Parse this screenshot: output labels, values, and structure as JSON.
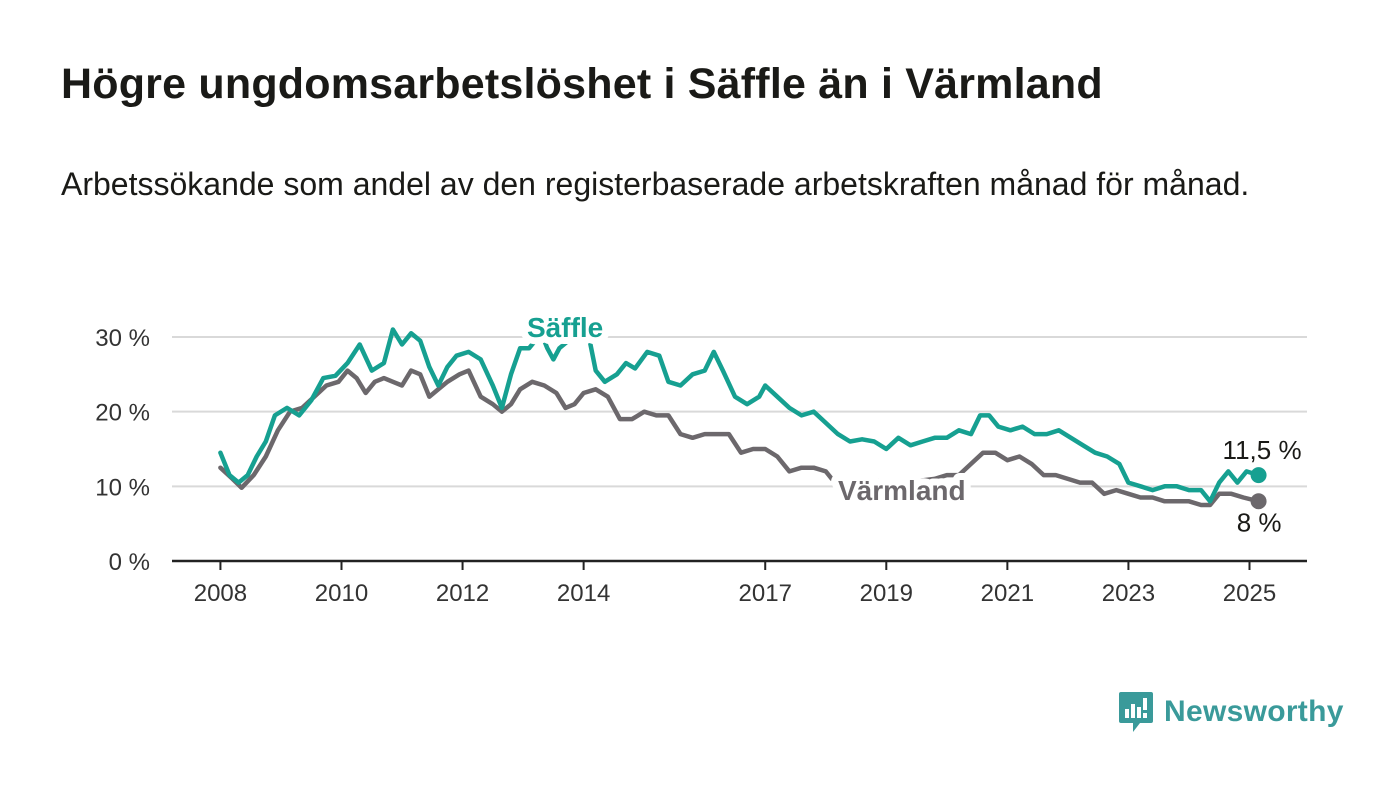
{
  "header": {
    "title": "Högre ungdomsarbetslöshet i Säffle än i Värmland",
    "subtitle": "Arbetssökande som andel av den registerbaserade arbetskraften månad för månad."
  },
  "branding": {
    "logo_text": "Newsworthy",
    "logo_icon": "bar-chart-speech-bubble-icon",
    "color": "#3a9a9a"
  },
  "chart_data": {
    "type": "line",
    "x_tick_labels": [
      "2008",
      "2010",
      "2012",
      "2014",
      "2017",
      "2019",
      "2021",
      "2023",
      "2025"
    ],
    "x_ticks": [
      2008,
      2010,
      2012,
      2014,
      2017,
      2019,
      2021,
      2023,
      2025
    ],
    "xlim": [
      2007.2,
      2025.95
    ],
    "y_tick_labels": [
      "0 %",
      "10 %",
      "20 %",
      "30 %"
    ],
    "y_ticks": [
      0,
      10,
      20,
      30
    ],
    "ylim": [
      0,
      30
    ],
    "grid": true,
    "series": [
      {
        "name": "Säffle",
        "color": "#16a091",
        "end_label": "11,5 %",
        "points": [
          [
            2008.0,
            14.5
          ],
          [
            2008.15,
            11.5
          ],
          [
            2008.3,
            10.5
          ],
          [
            2008.45,
            11.5
          ],
          [
            2008.6,
            14
          ],
          [
            2008.75,
            16
          ],
          [
            2008.9,
            19.5
          ],
          [
            2009.1,
            20.5
          ],
          [
            2009.3,
            19.5
          ],
          [
            2009.5,
            21.5
          ],
          [
            2009.7,
            24.5
          ],
          [
            2009.9,
            24.8
          ],
          [
            2010.1,
            26.5
          ],
          [
            2010.3,
            29
          ],
          [
            2010.5,
            25.5
          ],
          [
            2010.7,
            26.5
          ],
          [
            2010.85,
            31
          ],
          [
            2011.0,
            29
          ],
          [
            2011.15,
            30.5
          ],
          [
            2011.3,
            29.5
          ],
          [
            2011.45,
            26
          ],
          [
            2011.6,
            23.5
          ],
          [
            2011.75,
            26
          ],
          [
            2011.9,
            27.5
          ],
          [
            2012.1,
            28
          ],
          [
            2012.3,
            27
          ],
          [
            2012.5,
            23.5
          ],
          [
            2012.65,
            20.5
          ],
          [
            2012.8,
            25
          ],
          [
            2012.95,
            28.5
          ],
          [
            2013.1,
            28.5
          ],
          [
            2013.3,
            30.5
          ],
          [
            2013.4,
            28.5
          ],
          [
            2013.5,
            27
          ],
          [
            2013.6,
            28.5
          ],
          [
            2013.75,
            29.5
          ],
          [
            2013.9,
            30.5
          ],
          [
            2014.1,
            29.5
          ],
          [
            2014.2,
            25.5
          ],
          [
            2014.35,
            24
          ],
          [
            2014.55,
            25
          ],
          [
            2014.7,
            26.5
          ],
          [
            2014.85,
            25.8
          ],
          [
            2015.05,
            28
          ],
          [
            2015.25,
            27.5
          ],
          [
            2015.4,
            24
          ],
          [
            2015.6,
            23.5
          ],
          [
            2015.8,
            25
          ],
          [
            2016.0,
            25.5
          ],
          [
            2016.15,
            28
          ],
          [
            2016.3,
            25.5
          ],
          [
            2016.5,
            22
          ],
          [
            2016.7,
            21
          ],
          [
            2016.9,
            22
          ],
          [
            2017.0,
            23.5
          ],
          [
            2017.2,
            22
          ],
          [
            2017.4,
            20.5
          ],
          [
            2017.6,
            19.5
          ],
          [
            2017.8,
            20
          ],
          [
            2018.0,
            18.5
          ],
          [
            2018.2,
            17
          ],
          [
            2018.4,
            16
          ],
          [
            2018.6,
            16.3
          ],
          [
            2018.8,
            16
          ],
          [
            2019.0,
            15
          ],
          [
            2019.2,
            16.5
          ],
          [
            2019.4,
            15.5
          ],
          [
            2019.6,
            16
          ],
          [
            2019.8,
            16.5
          ],
          [
            2020.0,
            16.5
          ],
          [
            2020.2,
            17.5
          ],
          [
            2020.4,
            17
          ],
          [
            2020.55,
            19.5
          ],
          [
            2020.7,
            19.5
          ],
          [
            2020.85,
            18
          ],
          [
            2021.05,
            17.5
          ],
          [
            2021.25,
            18
          ],
          [
            2021.45,
            17
          ],
          [
            2021.65,
            17
          ],
          [
            2021.85,
            17.5
          ],
          [
            2022.05,
            16.5
          ],
          [
            2022.25,
            15.5
          ],
          [
            2022.45,
            14.5
          ],
          [
            2022.65,
            14
          ],
          [
            2022.85,
            13
          ],
          [
            2023.0,
            10.5
          ],
          [
            2023.2,
            10
          ],
          [
            2023.4,
            9.5
          ],
          [
            2023.6,
            10
          ],
          [
            2023.8,
            10
          ],
          [
            2024.0,
            9.5
          ],
          [
            2024.2,
            9.5
          ],
          [
            2024.35,
            8
          ],
          [
            2024.5,
            10.5
          ],
          [
            2024.65,
            12
          ],
          [
            2024.8,
            10.5
          ],
          [
            2024.95,
            12
          ],
          [
            2025.15,
            11.5
          ]
        ]
      },
      {
        "name": "Värmland",
        "color": "#6c686c",
        "end_label": "8 %",
        "points": [
          [
            2008.0,
            12.5
          ],
          [
            2008.2,
            11
          ],
          [
            2008.35,
            9.8
          ],
          [
            2008.55,
            11.5
          ],
          [
            2008.75,
            14
          ],
          [
            2008.95,
            17.5
          ],
          [
            2009.15,
            20
          ],
          [
            2009.35,
            20.5
          ],
          [
            2009.55,
            22
          ],
          [
            2009.75,
            23.5
          ],
          [
            2009.95,
            24
          ],
          [
            2010.1,
            25.5
          ],
          [
            2010.25,
            24.5
          ],
          [
            2010.4,
            22.5
          ],
          [
            2010.55,
            24
          ],
          [
            2010.7,
            24.5
          ],
          [
            2010.85,
            24
          ],
          [
            2011.0,
            23.5
          ],
          [
            2011.15,
            25.5
          ],
          [
            2011.3,
            25
          ],
          [
            2011.45,
            22
          ],
          [
            2011.6,
            23
          ],
          [
            2011.75,
            24
          ],
          [
            2011.95,
            25
          ],
          [
            2012.1,
            25.5
          ],
          [
            2012.3,
            22
          ],
          [
            2012.5,
            21
          ],
          [
            2012.65,
            20
          ],
          [
            2012.8,
            21
          ],
          [
            2012.95,
            23
          ],
          [
            2013.15,
            24
          ],
          [
            2013.35,
            23.5
          ],
          [
            2013.55,
            22.5
          ],
          [
            2013.7,
            20.5
          ],
          [
            2013.85,
            21
          ],
          [
            2014.0,
            22.5
          ],
          [
            2014.2,
            23
          ],
          [
            2014.4,
            22
          ],
          [
            2014.6,
            19
          ],
          [
            2014.8,
            19
          ],
          [
            2015.0,
            20
          ],
          [
            2015.2,
            19.5
          ],
          [
            2015.4,
            19.5
          ],
          [
            2015.6,
            17
          ],
          [
            2015.8,
            16.5
          ],
          [
            2016.0,
            17
          ],
          [
            2016.2,
            17
          ],
          [
            2016.4,
            17
          ],
          [
            2016.6,
            14.5
          ],
          [
            2016.8,
            15
          ],
          [
            2017.0,
            15
          ],
          [
            2017.2,
            14
          ],
          [
            2017.4,
            12
          ],
          [
            2017.6,
            12.5
          ],
          [
            2017.8,
            12.5
          ],
          [
            2018.0,
            12
          ],
          [
            2018.1,
            11
          ],
          [
            2019.4,
            10.5
          ],
          [
            2019.6,
            10.8
          ],
          [
            2019.8,
            11
          ],
          [
            2020.0,
            11.5
          ],
          [
            2020.2,
            11.5
          ],
          [
            2020.4,
            13
          ],
          [
            2020.6,
            14.5
          ],
          [
            2020.8,
            14.5
          ],
          [
            2021.0,
            13.5
          ],
          [
            2021.2,
            14
          ],
          [
            2021.4,
            13
          ],
          [
            2021.6,
            11.5
          ],
          [
            2021.8,
            11.5
          ],
          [
            2022.0,
            11
          ],
          [
            2022.2,
            10.5
          ],
          [
            2022.4,
            10.5
          ],
          [
            2022.6,
            9
          ],
          [
            2022.8,
            9.5
          ],
          [
            2023.0,
            9
          ],
          [
            2023.2,
            8.5
          ],
          [
            2023.4,
            8.5
          ],
          [
            2023.6,
            8
          ],
          [
            2023.8,
            8
          ],
          [
            2024.0,
            8
          ],
          [
            2024.2,
            7.5
          ],
          [
            2024.35,
            7.5
          ],
          [
            2024.5,
            9
          ],
          [
            2024.7,
            9
          ],
          [
            2024.9,
            8.5
          ],
          [
            2025.15,
            8
          ]
        ]
      }
    ]
  }
}
